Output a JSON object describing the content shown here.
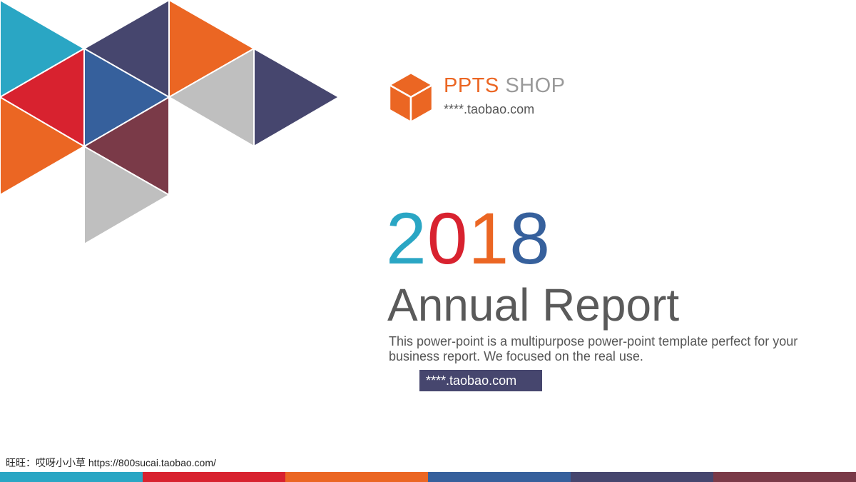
{
  "decoration": {
    "colors": {
      "teal": "#2aa6c4",
      "navy": "#46466e",
      "orange": "#eb6623",
      "red": "#d8222f",
      "blue": "#36609c",
      "maroon": "#7a3a48",
      "gray": "#bfbfbf"
    }
  },
  "brand": {
    "logo_icon": "cube-icon",
    "name_primary": "PPTS",
    "name_secondary": "SHOP",
    "url": "****.taobao.com"
  },
  "hero": {
    "year_digits": [
      {
        "char": "2",
        "color": "#2aa6c4"
      },
      {
        "char": "0",
        "color": "#d8222f"
      },
      {
        "char": "1",
        "color": "#eb6623"
      },
      {
        "char": "8",
        "color": "#36609c"
      }
    ],
    "title": "Annual Report",
    "description": "This power-point is a multipurpose power-point template perfect for your business report. We focused on the real use.",
    "url_badge": "****.taobao.com"
  },
  "footer": {
    "credit": "旺旺：哎呀小小草 https://800sucai.taobao.com/",
    "stripe_colors": [
      "#2aa6c4",
      "#d8222f",
      "#eb6623",
      "#36609c",
      "#46466e",
      "#7a3a48"
    ]
  }
}
